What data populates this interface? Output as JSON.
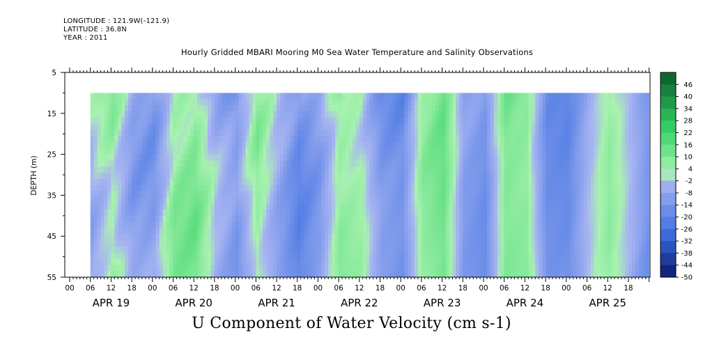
{
  "header": {
    "longitude": "LONGITUDE : 121.9W(-121.9)",
    "latitude": "LATITUDE : 36.8N",
    "year": "YEAR : 2011"
  },
  "colors": {
    "neg_dark": "#0a1a6e",
    "neg_mid": "#3b6fe0",
    "neg_light": "#a7b4f2",
    "pos_light": "#a9f2b0",
    "pos_mid": "#33d265",
    "pos_dark": "#0b5a2a"
  },
  "chart_data": {
    "type": "heatmap",
    "title": "Hourly Gridded MBARI Mooring M0 Sea Water Temperature and Salinity Observations",
    "xlabel": "U Component of Water Velocity (cm s-1)",
    "ylabel": "DEPTH (m)",
    "y_ticks": [
      5,
      15,
      25,
      35,
      45,
      55
    ],
    "ylim": [
      55,
      5
    ],
    "data_depth_range": [
      10,
      55
    ],
    "x_hour_ticks": [
      "00",
      "06",
      "12",
      "18",
      "00",
      "06",
      "12",
      "18",
      "00",
      "06",
      "12",
      "18",
      "00",
      "06",
      "12",
      "18",
      "00",
      "06",
      "12",
      "18",
      "00",
      "06",
      "12",
      "18",
      "00",
      "06",
      "12",
      "18"
    ],
    "x_day_labels": [
      "APR 19",
      "APR 20",
      "APR 21",
      "APR 22",
      "APR 23",
      "APR 24",
      "APR 25"
    ],
    "colorbar_levels": [
      "46",
      "40",
      "34",
      "28",
      "22",
      "16",
      "10",
      "4",
      "-2",
      "-8",
      "-14",
      "-20",
      "-26",
      "-32",
      "-38",
      "-44",
      "-50"
    ],
    "colorbar_range": [
      -50,
      52
    ],
    "data_time_start_hour": 6,
    "data_time_end_hour": 167,
    "time_anomaly_profile": [
      {
        "hour": 6,
        "value": -4
      },
      {
        "hour": 12,
        "value": 6
      },
      {
        "hour": 18,
        "value": -8
      },
      {
        "hour": 24,
        "value": -10
      },
      {
        "hour": 30,
        "value": 8
      },
      {
        "hour": 36,
        "value": 10
      },
      {
        "hour": 42,
        "value": -6
      },
      {
        "hour": 48,
        "value": -14
      },
      {
        "hour": 54,
        "value": 4
      },
      {
        "hour": 60,
        "value": -8
      },
      {
        "hour": 66,
        "value": -18
      },
      {
        "hour": 72,
        "value": -10
      },
      {
        "hour": 78,
        "value": 8
      },
      {
        "hour": 84,
        "value": 4
      },
      {
        "hour": 90,
        "value": -12
      },
      {
        "hour": 96,
        "value": -16
      },
      {
        "hour": 102,
        "value": 6
      },
      {
        "hour": 108,
        "value": 12
      },
      {
        "hour": 114,
        "value": -12
      },
      {
        "hour": 120,
        "value": -16
      },
      {
        "hour": 126,
        "value": 10
      },
      {
        "hour": 132,
        "value": 8
      },
      {
        "hour": 138,
        "value": -16
      },
      {
        "hour": 144,
        "value": -18
      },
      {
        "hour": 150,
        "value": -4
      },
      {
        "hour": 156,
        "value": 6
      },
      {
        "hour": 162,
        "value": -4
      },
      {
        "hour": 167,
        "value": -14
      }
    ]
  }
}
